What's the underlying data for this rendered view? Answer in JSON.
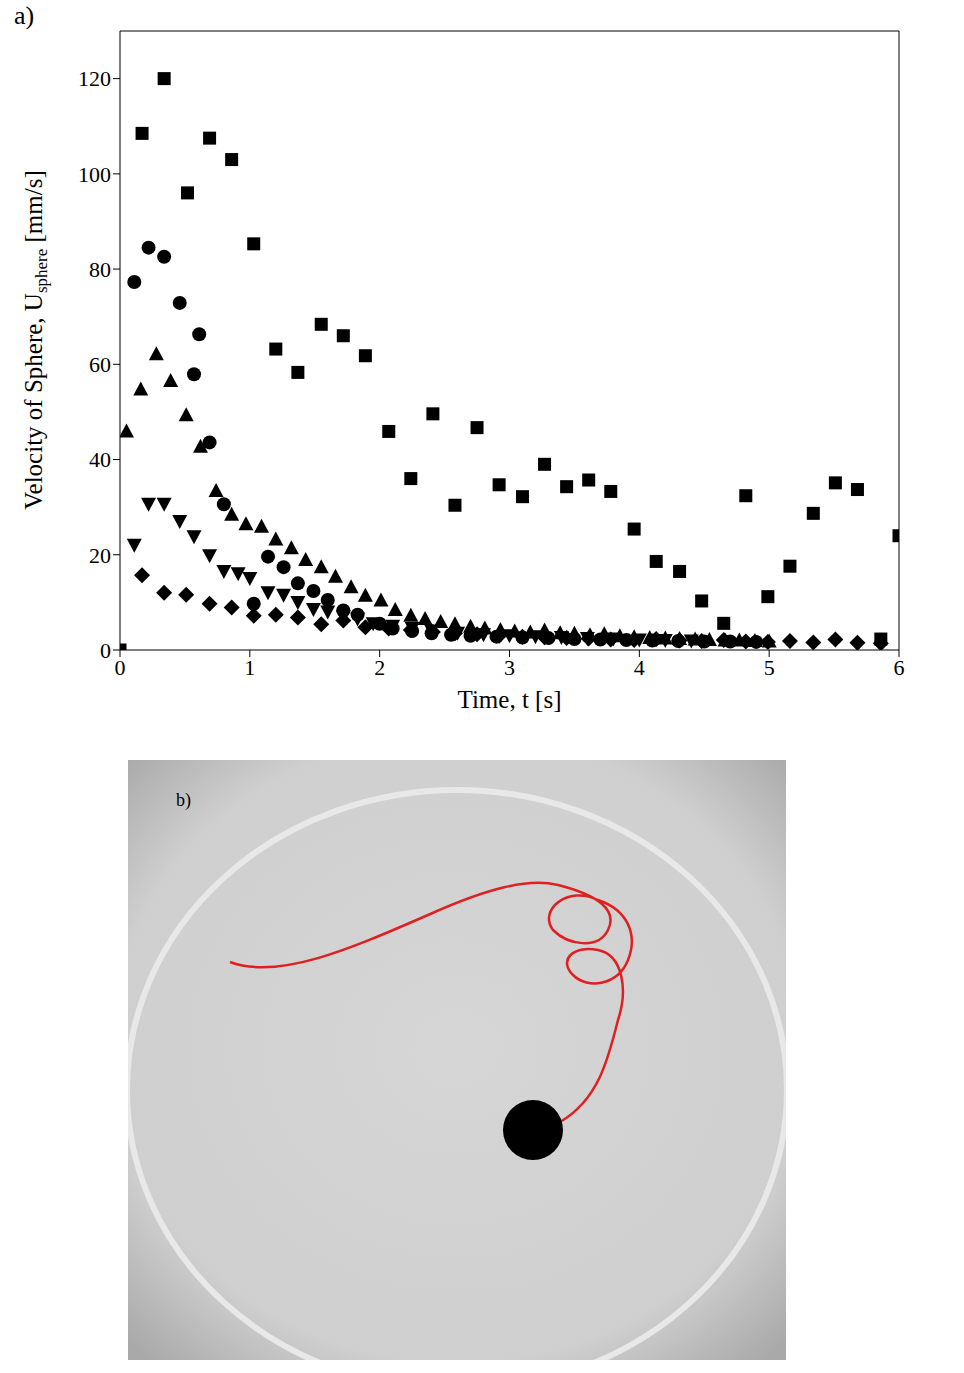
{
  "chart_data": {
    "type": "scatter",
    "title": "a)",
    "xlabel": "Time, t [s]",
    "ylabel": [
      "Velocity of Sphere, U",
      "sphere",
      " [mm/s]"
    ],
    "xlim": [
      0,
      6
    ],
    "xticks": [
      0,
      1,
      2,
      3,
      4,
      5,
      6
    ],
    "ylim": [
      0,
      130
    ],
    "yticks": [
      0,
      20,
      40,
      60,
      80,
      100,
      120
    ],
    "grid": false,
    "series": [
      {
        "marker": "square",
        "color": "#000000",
        "x": [
          0,
          0.17,
          0.34,
          0.52,
          0.69,
          0.86,
          1.03,
          1.2,
          1.37,
          1.55,
          1.72,
          1.89,
          2.07,
          2.24,
          2.41,
          2.58,
          2.75,
          2.92,
          3.1,
          3.27,
          3.44,
          3.61,
          3.78,
          3.96,
          4.13,
          4.31,
          4.48,
          4.65,
          4.82,
          4.99,
          5.16,
          5.34,
          5.51,
          5.68,
          5.86,
          6.0
        ],
        "values": [
          0,
          108.5,
          120,
          96,
          107.5,
          103,
          85.3,
          63.2,
          58.3,
          68.4,
          66,
          61.8,
          45.9,
          36,
          49.6,
          30.4,
          46.7,
          34.7,
          32.2,
          39,
          34.3,
          35.7,
          33.3,
          25.4,
          18.6,
          16.5,
          10.3,
          5.6,
          32.4,
          11.2,
          17.6,
          28.7,
          35.1,
          33.7,
          2.3,
          24
        ]
      },
      {
        "marker": "circle",
        "color": "#000000",
        "x": [
          0.11,
          0.22,
          0.34,
          0.46,
          0.57,
          0.61,
          0.69,
          0.8,
          1.03,
          1.14,
          1.26,
          1.37,
          1.49,
          1.6,
          1.72,
          1.83,
          2.0,
          2.1,
          2.25,
          2.4,
          2.55,
          2.7,
          2.9,
          3.1,
          3.3,
          3.5,
          3.7,
          3.9,
          4.1,
          4.3,
          4.5,
          4.7,
          4.9
        ],
        "values": [
          77.3,
          84.5,
          82.6,
          72.9,
          57.9,
          66.3,
          43.6,
          30.6,
          9.7,
          19.6,
          17.4,
          14,
          12.4,
          10.5,
          8.3,
          7.4,
          5.5,
          4.5,
          4,
          3.5,
          3.2,
          3,
          2.8,
          2.6,
          2.5,
          2.3,
          2.2,
          2.1,
          2,
          1.9,
          1.8,
          1.8,
          1.7
        ]
      },
      {
        "marker": "triangle",
        "color": "#000000",
        "x": [
          0.05,
          0.16,
          0.28,
          0.39,
          0.51,
          0.62,
          0.74,
          0.86,
          0.97,
          1.09,
          1.2,
          1.32,
          1.43,
          1.55,
          1.66,
          1.78,
          1.89,
          2.01,
          2.12,
          2.24,
          2.35,
          2.47,
          2.58,
          2.7,
          2.81,
          2.93,
          3.04,
          3.16,
          3.27,
          3.39,
          3.5,
          3.62,
          3.73,
          3.85,
          3.96,
          4.08,
          4.2,
          4.31,
          4.43,
          4.54,
          4.66,
          4.77,
          4.89,
          5.0
        ],
        "values": [
          46,
          54.8,
          62.2,
          56.6,
          49.4,
          42.8,
          33.5,
          28.5,
          26.5,
          26,
          23.3,
          21.5,
          19,
          17.5,
          15.5,
          13.3,
          11.5,
          10.5,
          8.5,
          7.3,
          6.6,
          6,
          5.5,
          5,
          4.6,
          4.3,
          4,
          3.8,
          4.2,
          3.6,
          3.5,
          3.2,
          3.4,
          3,
          2.8,
          2.6,
          2.5,
          2.4,
          2.3,
          2.2,
          2.1,
          2.1,
          2,
          1.9
        ]
      },
      {
        "marker": "triangle_down",
        "color": "#000000",
        "x": [
          0.11,
          0.22,
          0.34,
          0.46,
          0.57,
          0.69,
          0.8,
          0.91,
          1.0,
          1.14,
          1.26,
          1.37,
          1.49,
          1.6,
          1.72,
          1.83,
          1.95,
          2.1,
          2.25,
          2.4,
          2.6,
          2.8,
          3.0,
          3.2,
          3.4,
          3.6,
          3.8,
          4.0,
          4.2,
          4.4
        ],
        "values": [
          22,
          30.6,
          30.6,
          27,
          23.8,
          19.8,
          16.5,
          16,
          15,
          12,
          11.5,
          10,
          8.5,
          8,
          7,
          6.5,
          5.5,
          5,
          4.5,
          4,
          3.5,
          3.2,
          3,
          2.8,
          2.6,
          2.4,
          2.3,
          2.1,
          2,
          1.9
        ]
      },
      {
        "marker": "diamond",
        "color": "#000000",
        "x": [
          0.17,
          0.34,
          0.51,
          0.69,
          0.86,
          1.03,
          1.2,
          1.37,
          1.55,
          1.72,
          1.89,
          2.07,
          2.24,
          2.41,
          2.58,
          2.75,
          2.92,
          3.1,
          3.27,
          3.44,
          3.61,
          3.78,
          3.96,
          4.13,
          4.31,
          4.48,
          4.65,
          4.82,
          4.99,
          5.16,
          5.34,
          5.51,
          5.68,
          5.86
        ],
        "values": [
          15.7,
          12,
          11.6,
          9.7,
          8.9,
          7.2,
          7.4,
          6.8,
          5.4,
          6.2,
          4.8,
          4.5,
          4.2,
          3.8,
          3.5,
          3.3,
          3,
          2.8,
          2.7,
          2.5,
          2.4,
          2.2,
          2.1,
          2.3,
          2,
          1.9,
          2.1,
          1.8,
          1.7,
          1.9,
          1.6,
          2.2,
          1.5,
          1.4
        ]
      }
    ]
  },
  "photo": {
    "label": "b)"
  }
}
